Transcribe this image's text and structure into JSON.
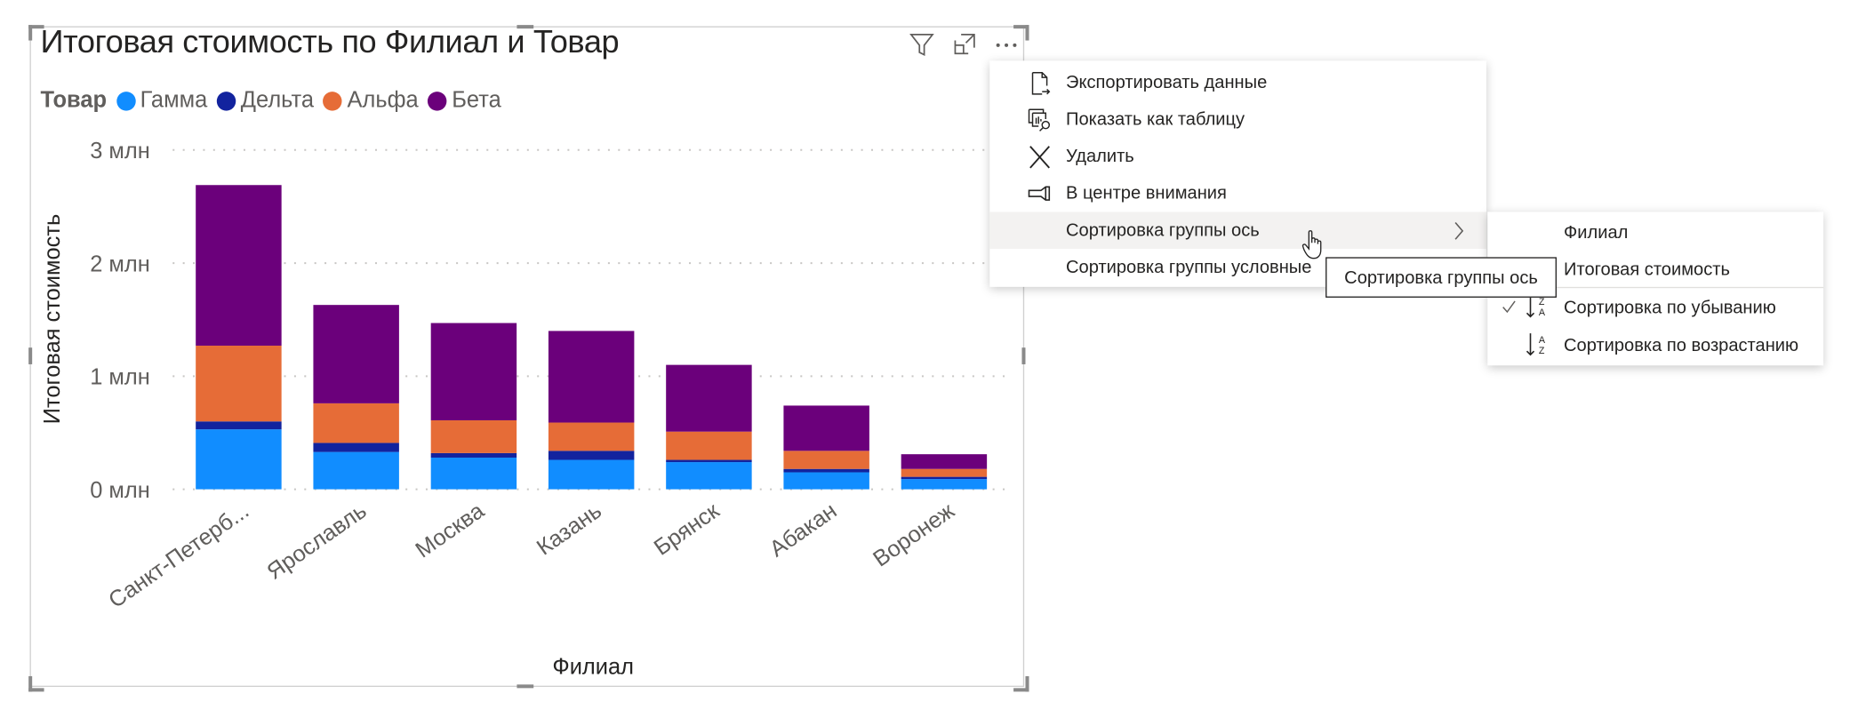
{
  "header": {
    "title": "Итоговая стоимость по Филиал и Товар",
    "icons": [
      "filter-icon",
      "focus-mode-icon",
      "more-options-icon"
    ]
  },
  "legend": {
    "title": "Товар",
    "items": [
      {
        "label": "Гамма",
        "color": "#118DFF"
      },
      {
        "label": "Дельта",
        "color": "#12239E"
      },
      {
        "label": "Альфа",
        "color": "#E66C37"
      },
      {
        "label": "Бета",
        "color": "#6B007B"
      }
    ]
  },
  "chart_data": {
    "type": "bar",
    "stacked": true,
    "title": "Итоговая стоимость по Филиал и Товар",
    "xlabel": "Филиал",
    "ylabel": "Итоговая стоимость",
    "ylim": [
      0,
      3
    ],
    "yticks": [
      0,
      1,
      2,
      3
    ],
    "ytick_labels": [
      "0 млн",
      "1 млн",
      "2 млн",
      "3 млн"
    ],
    "grid": true,
    "legend_position": "top-left",
    "categories": [
      "Санкт-Петерб...",
      "Ярославль",
      "Москва",
      "Казань",
      "Брянск",
      "Абакан",
      "Воронеж"
    ],
    "series": [
      {
        "name": "Гамма",
        "color": "#118DFF",
        "values": [
          0.53,
          0.33,
          0.28,
          0.26,
          0.24,
          0.15,
          0.09
        ]
      },
      {
        "name": "Дельта",
        "color": "#12239E",
        "values": [
          0.07,
          0.08,
          0.04,
          0.08,
          0.02,
          0.03,
          0.02
        ]
      },
      {
        "name": "Альфа",
        "color": "#E66C37",
        "values": [
          0.67,
          0.35,
          0.29,
          0.25,
          0.25,
          0.16,
          0.07
        ]
      },
      {
        "name": "Бета",
        "color": "#6B007B",
        "values": [
          1.42,
          0.87,
          0.86,
          0.81,
          0.59,
          0.4,
          0.13
        ]
      }
    ]
  },
  "context_menu": {
    "items": [
      {
        "label": "Экспортировать данные",
        "icon": "export-icon"
      },
      {
        "label": "Показать как таблицу",
        "icon": "table-view-icon"
      },
      {
        "label": "Удалить",
        "icon": "close-icon"
      },
      {
        "label": "В центре внимания",
        "icon": "spotlight-icon"
      },
      {
        "label": "Сортировка группы ось",
        "icon": "",
        "submenu": true
      },
      {
        "label": "Сортировка группы условные",
        "icon": ""
      }
    ]
  },
  "submenu": {
    "items": [
      {
        "label": "Филиал"
      },
      {
        "label": "Итоговая стоимость"
      },
      {
        "label": "Сортировка по убыванию",
        "checked": true,
        "icon": "sort-descending-icon"
      },
      {
        "label": "Сортировка по возрастанию",
        "icon": "sort-ascending-icon"
      }
    ]
  },
  "tooltip": {
    "text": "Сортировка группы ось"
  }
}
